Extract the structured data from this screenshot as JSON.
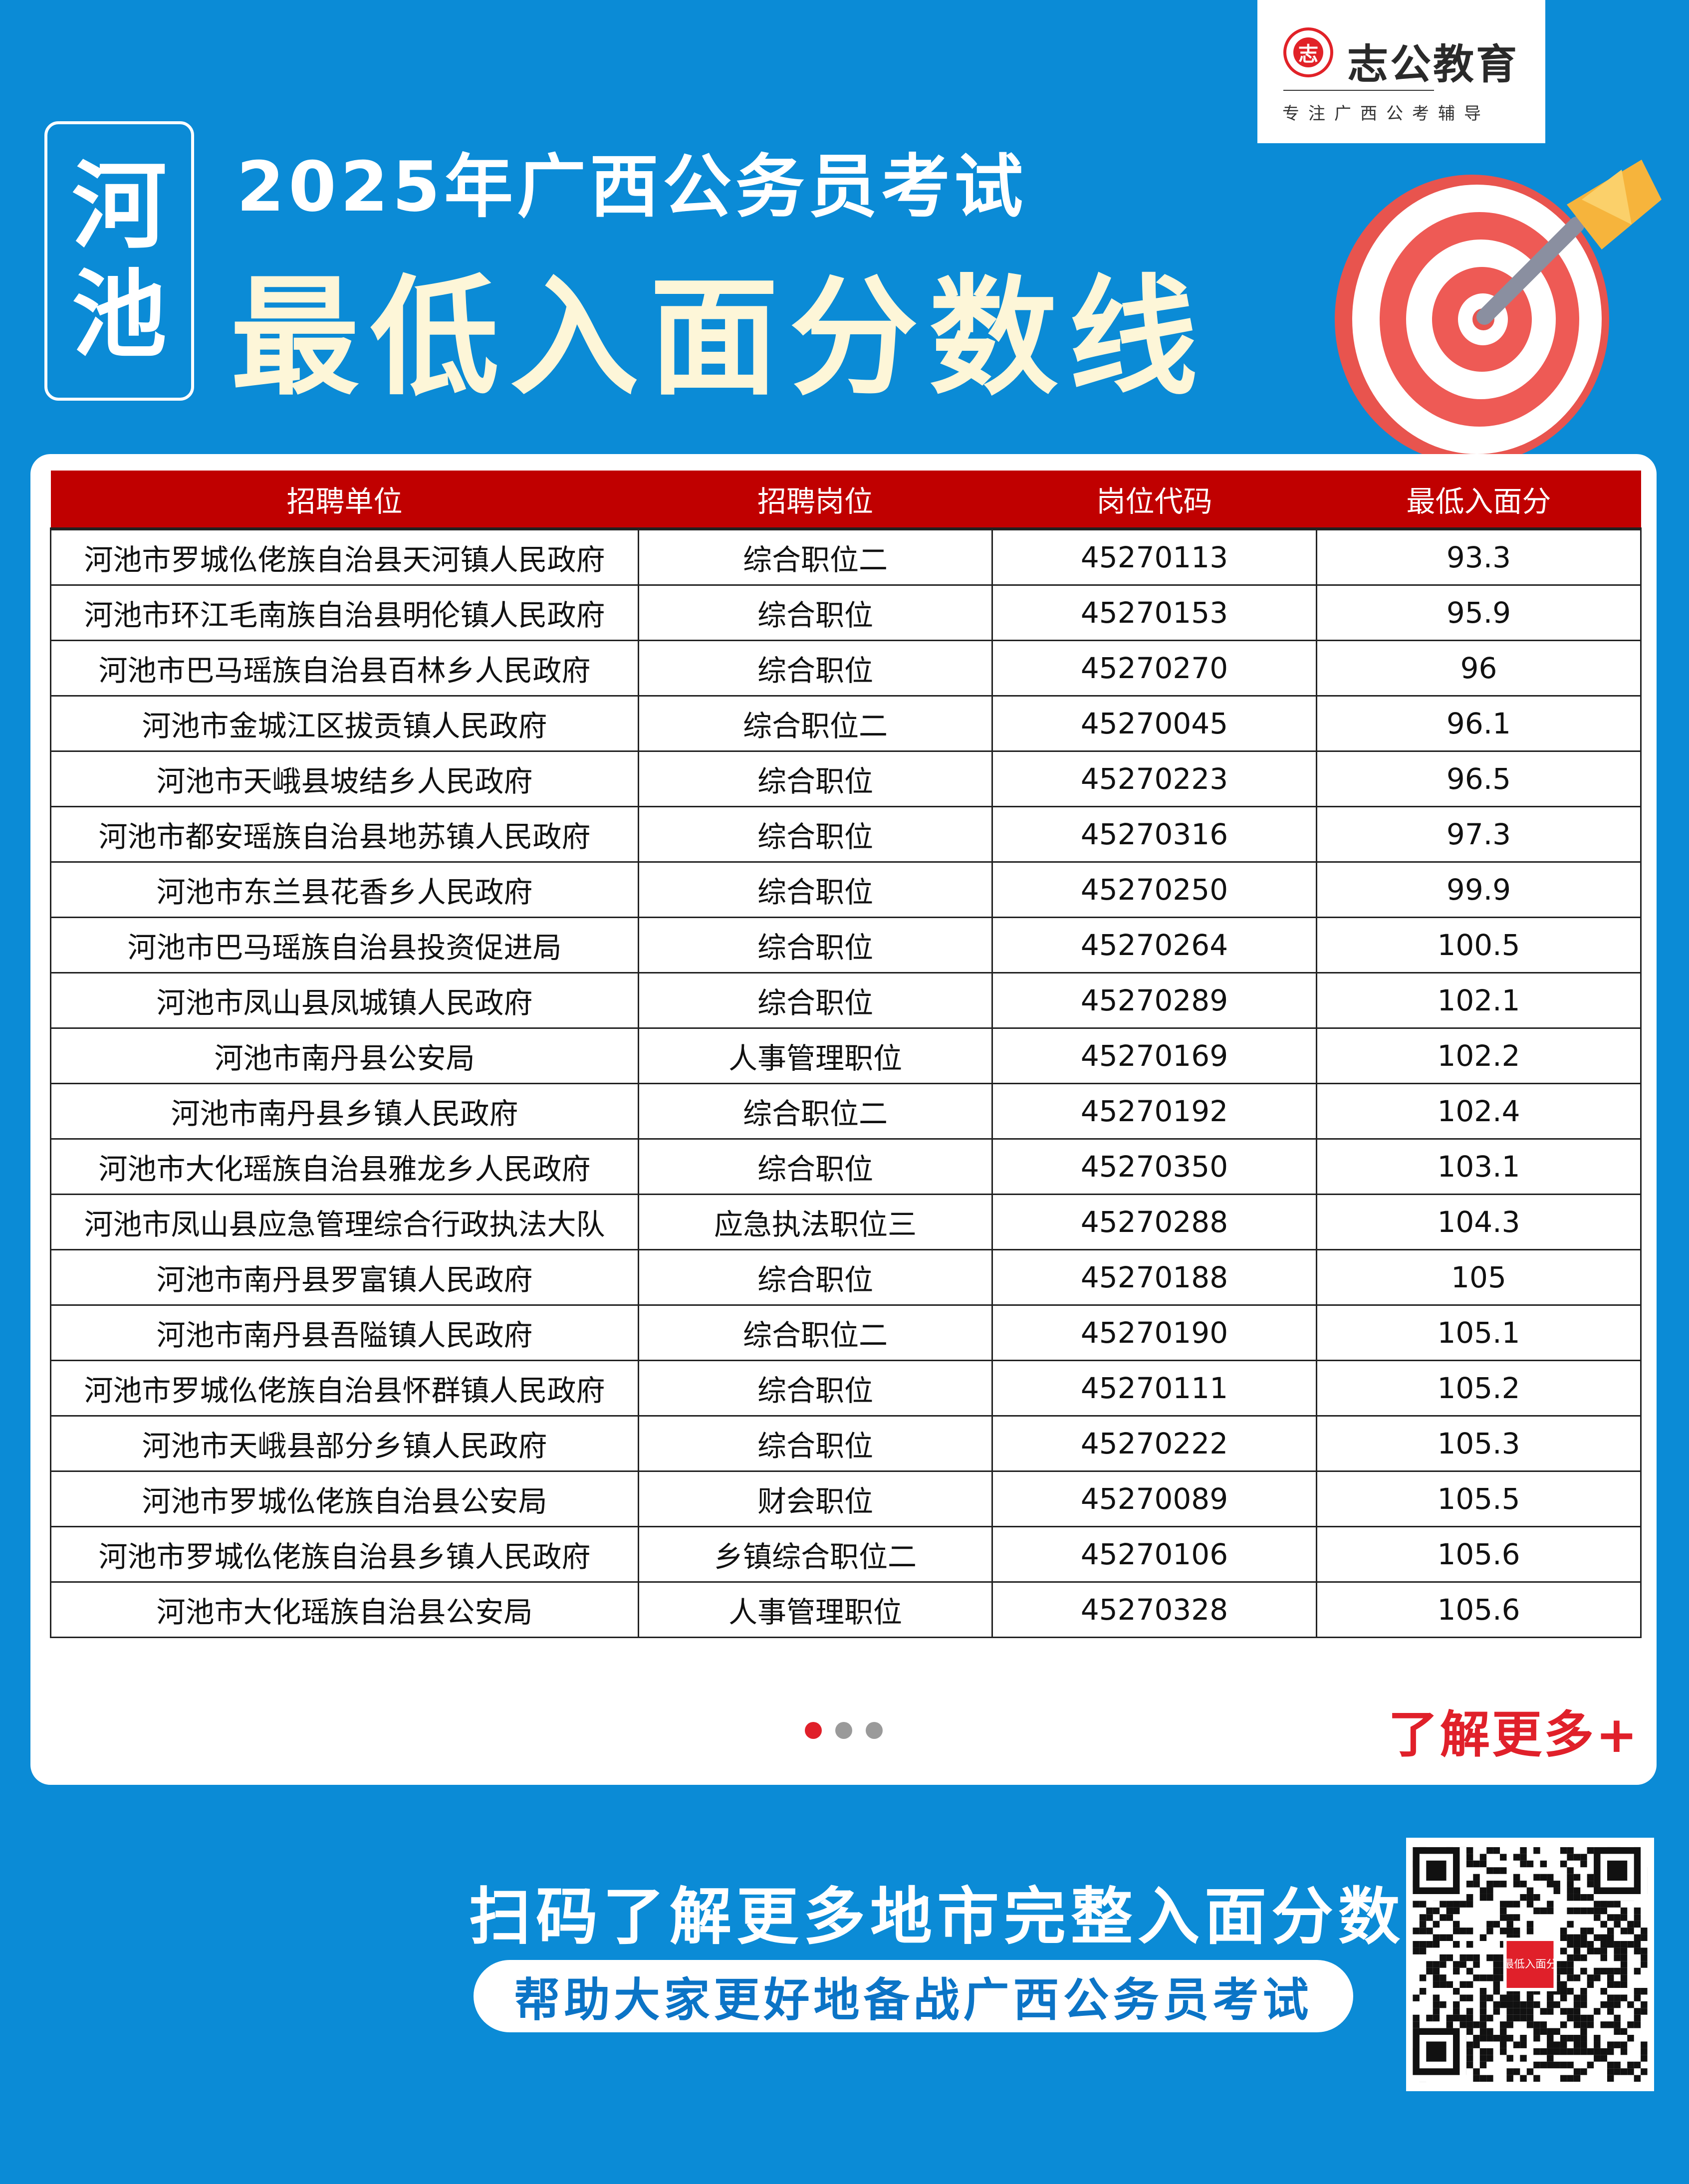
{
  "brand": {
    "name": "志公教育",
    "seal_char": "志",
    "slogan": "专注广西公考辅导"
  },
  "header": {
    "city": "河池",
    "title_line1": "2025年广西公务员考试",
    "title_line2": "最低入面分数线"
  },
  "table": {
    "columns": [
      "招聘单位",
      "招聘岗位",
      "岗位代码",
      "最低入面分"
    ],
    "rows": [
      [
        "河池市罗城仫佬族自治县天河镇人民政府",
        "综合职位二",
        "45270113",
        "93.3"
      ],
      [
        "河池市环江毛南族自治县明伦镇人民政府",
        "综合职位",
        "45270153",
        "95.9"
      ],
      [
        "河池市巴马瑶族自治县百林乡人民政府",
        "综合职位",
        "45270270",
        "96"
      ],
      [
        "河池市金城江区拔贡镇人民政府",
        "综合职位二",
        "45270045",
        "96.1"
      ],
      [
        "河池市天峨县坡结乡人民政府",
        "综合职位",
        "45270223",
        "96.5"
      ],
      [
        "河池市都安瑶族自治县地苏镇人民政府",
        "综合职位",
        "45270316",
        "97.3"
      ],
      [
        "河池市东兰县花香乡人民政府",
        "综合职位",
        "45270250",
        "99.9"
      ],
      [
        "河池市巴马瑶族自治县投资促进局",
        "综合职位",
        "45270264",
        "100.5"
      ],
      [
        "河池市凤山县凤城镇人民政府",
        "综合职位",
        "45270289",
        "102.1"
      ],
      [
        "河池市南丹县公安局",
        "人事管理职位",
        "45270169",
        "102.2"
      ],
      [
        "河池市南丹县乡镇人民政府",
        "综合职位二",
        "45270192",
        "102.4"
      ],
      [
        "河池市大化瑶族自治县雅龙乡人民政府",
        "综合职位",
        "45270350",
        "103.1"
      ],
      [
        "河池市凤山县应急管理综合行政执法大队",
        "应急执法职位三",
        "45270288",
        "104.3"
      ],
      [
        "河池市南丹县罗富镇人民政府",
        "综合职位",
        "45270188",
        "105"
      ],
      [
        "河池市南丹县吾隘镇人民政府",
        "综合职位二",
        "45270190",
        "105.1"
      ],
      [
        "河池市罗城仫佬族自治县怀群镇人民政府",
        "综合职位",
        "45270111",
        "105.2"
      ],
      [
        "河池市天峨县部分乡镇人民政府",
        "综合职位",
        "45270222",
        "105.3"
      ],
      [
        "河池市罗城仫佬族自治县公安局",
        "财会职位",
        "45270089",
        "105.5"
      ],
      [
        "河池市罗城仫佬族自治县乡镇人民政府",
        "乡镇综合职位二",
        "45270106",
        "105.6"
      ],
      [
        "河池市大化瑶族自治县公安局",
        "人事管理职位",
        "45270328",
        "105.6"
      ]
    ]
  },
  "pagination": {
    "active_index": 0,
    "count": 3,
    "active_color": "#e0202a"
  },
  "more_link": "了解更多+",
  "footer": {
    "scan_text": "扫码了解更多地市完整入面分数",
    "pill_text": "帮助大家更好地备战广西公务员考试",
    "qr_center_label": "最低入面分"
  },
  "colors": {
    "background": "#0b8bd6",
    "header_red": "#c00000",
    "title_cream": "#fdf6d8"
  }
}
